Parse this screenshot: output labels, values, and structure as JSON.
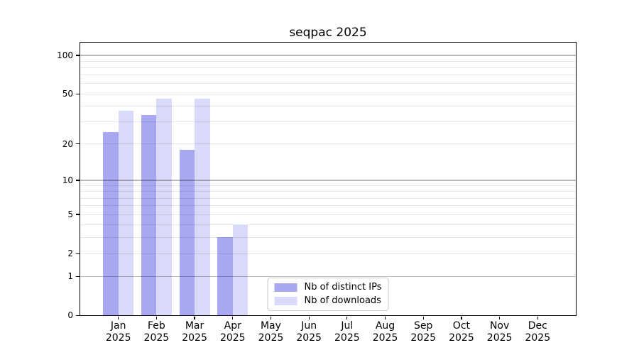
{
  "chart_data": {
    "type": "bar",
    "title": "seqpac 2025",
    "categories": [
      "Jan",
      "Feb",
      "Mar",
      "Apr",
      "May",
      "Jun",
      "Jul",
      "Aug",
      "Sep",
      "Oct",
      "Nov",
      "Dec"
    ],
    "category_sublabel": "2025",
    "series": [
      {
        "name": "Nb of distinct IPs",
        "color": "#a7a7f2",
        "values": [
          25,
          34,
          18,
          3,
          0,
          0,
          0,
          0,
          0,
          0,
          0,
          0
        ]
      },
      {
        "name": "Nb of downloads",
        "color": "#d9d9f9",
        "values": [
          37,
          46,
          46,
          4,
          0,
          0,
          0,
          0,
          0,
          0,
          0,
          0
        ]
      }
    ],
    "yscale": "log10(value+1)",
    "ylim": [
      0,
      125
    ],
    "ytick_values": [
      0,
      1,
      2,
      5,
      10,
      20,
      50,
      100
    ],
    "grid_major_values": [
      1,
      10,
      100
    ],
    "grid_minor_values": [
      2,
      3,
      4,
      5,
      6,
      7,
      8,
      9,
      20,
      30,
      40,
      50,
      60,
      70,
      80,
      90
    ],
    "grid": true,
    "legend_position": "lower center",
    "colors": {
      "spine": "#000000",
      "major_grid": "rgba(0,0,0,0.27)",
      "minor_grid": "rgba(0,0,0,0.10)",
      "background": "#ffffff"
    }
  }
}
